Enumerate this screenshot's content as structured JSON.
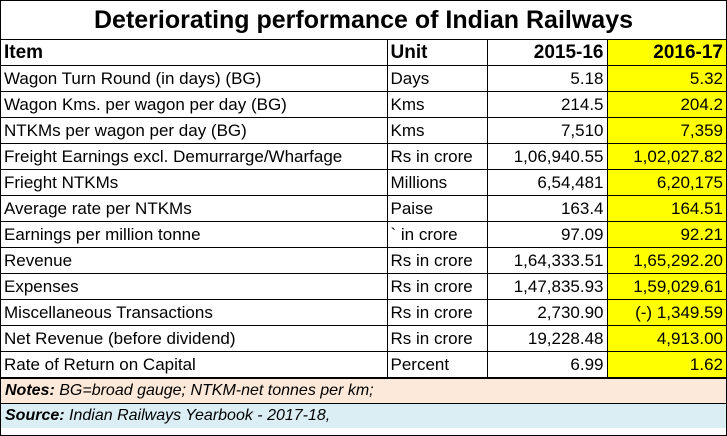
{
  "title": "Deteriorating performance of Indian Railways",
  "headers": {
    "item": "Item",
    "unit": "Unit",
    "y1": "2015-16",
    "y2": "2016-17"
  },
  "rows": [
    {
      "item": "Wagon Turn Round (in days) (BG)",
      "unit": "Days",
      "y1": "5.18",
      "y2": "5.32"
    },
    {
      "item": "Wagon Kms. per wagon per day (BG)",
      "unit": "Kms",
      "y1": "214.5",
      "y2": "204.2"
    },
    {
      "item": "NTKMs per wagon per day (BG)",
      "unit": "Kms",
      "y1": "7,510",
      "y2": "7,359"
    },
    {
      "item": "Freight Earnings excl. Demurrarge/Wharfage",
      "unit": "Rs in crore",
      "y1": "1,06,940.55",
      "y2": "1,02,027.82"
    },
    {
      "item": "Frieght NTKMs",
      "unit": "Millions",
      "y1": "6,54,481",
      "y2": "6,20,175"
    },
    {
      "item": "Average rate per NTKMs",
      "unit": "Paise",
      "y1": "163.4",
      "y2": "164.51"
    },
    {
      "item": "Earnings per million tonne",
      "unit": "` in crore",
      "y1": "97.09",
      "y2": "92.21"
    },
    {
      "item": "Revenue",
      "unit": "Rs in crore",
      "y1": "1,64,333.51",
      "y2": "1,65,292.20"
    },
    {
      "item": "Expenses",
      "unit": "Rs in crore",
      "y1": "1,47,835.93",
      "y2": "1,59,029.61"
    },
    {
      "item": "Miscellaneous Transactions",
      "unit": "Rs in crore",
      "y1": "2,730.90",
      "y2": "(-) 1,349.59"
    },
    {
      "item": "Net Revenue (before dividend)",
      "unit": "Rs in crore",
      "y1": "19,228.48",
      "y2": "4,913.00"
    },
    {
      "item": "Rate of Return on Capital",
      "unit": "Percent",
      "y1": "6.99",
      "y2": "1.62"
    }
  ],
  "notes": {
    "label": "Notes:",
    "text": "BG=broad gauge; NTKM-net tonnes per km;"
  },
  "source": {
    "label": "Source:",
    "text": "Indian Railways Yearbook - 2017-18,"
  },
  "colors": {
    "highlight": "#ffff00",
    "notes_bg": "#fde9d9",
    "source_bg": "#dbeef4"
  }
}
